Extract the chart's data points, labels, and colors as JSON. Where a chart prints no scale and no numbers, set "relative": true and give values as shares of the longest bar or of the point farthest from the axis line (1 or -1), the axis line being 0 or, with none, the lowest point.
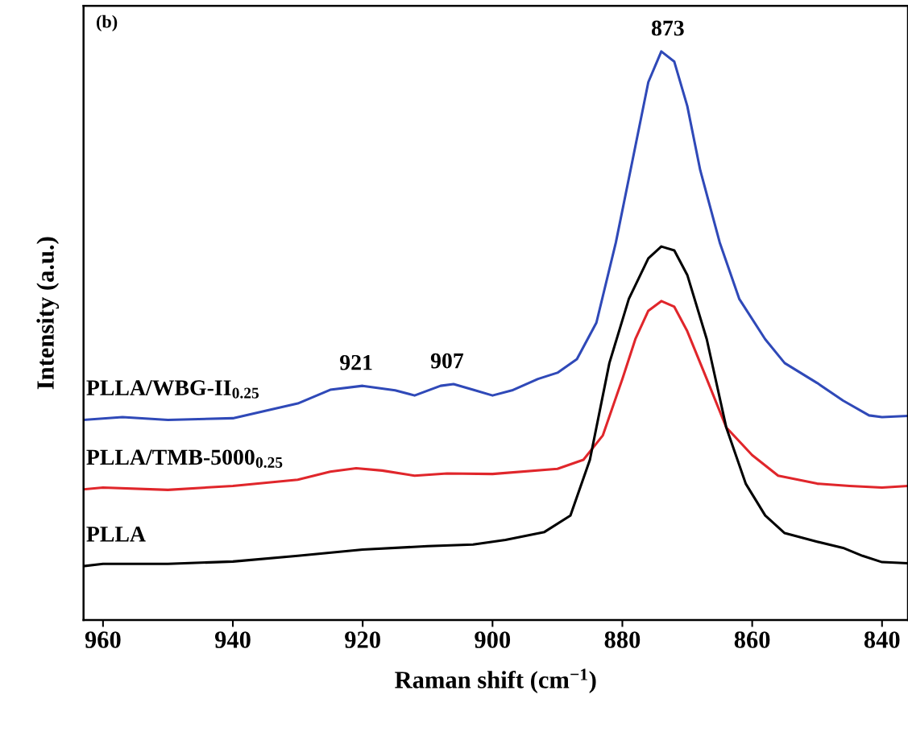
{
  "chart_data": {
    "type": "line",
    "relative": true,
    "xlabel": "Raman shift (cm$^{−1}$)",
    "ylabel": "Intensity (a.u.)",
    "xlim": [
      963,
      836
    ],
    "xticks": [
      960,
      940,
      920,
      900,
      880,
      860,
      840
    ],
    "tick_labels": "x",
    "grid": false,
    "marker": "none",
    "line_style": "solid",
    "annotations": [
      "(b)",
      {
        "text": "873",
        "x": 873,
        "y": 1.0
      },
      {
        "text": "921",
        "x": 921,
        "y": 0.412
      },
      {
        "text": "907",
        "x": 907,
        "y": 0.415
      }
    ],
    "series": [
      {
        "name": "PLLA/WBG-II$_{0.25}$",
        "color": "#2f49b8",
        "x": [
          963,
          957,
          950,
          940,
          930,
          925,
          920,
          915,
          912,
          908,
          906,
          903,
          900,
          897,
          893,
          890,
          887,
          884,
          881,
          878,
          876,
          874,
          872,
          870,
          868,
          865,
          862,
          858,
          855,
          850,
          846,
          842,
          840,
          836
        ],
        "values": [
          0.352,
          0.357,
          0.352,
          0.355,
          0.381,
          0.405,
          0.412,
          0.404,
          0.395,
          0.412,
          0.415,
          0.405,
          0.395,
          0.404,
          0.424,
          0.435,
          0.459,
          0.523,
          0.664,
          0.833,
          0.946,
          1.0,
          0.982,
          0.904,
          0.791,
          0.664,
          0.565,
          0.494,
          0.452,
          0.417,
          0.386,
          0.36,
          0.357,
          0.359
        ]
      },
      {
        "name": "PLLA/TMB-5000$_{0.25}$",
        "color": "#e0262b",
        "x": [
          963,
          960,
          950,
          940,
          930,
          925,
          921,
          917,
          912,
          907,
          900,
          890,
          886,
          883,
          880,
          878,
          876,
          874,
          872,
          870,
          867,
          864,
          860,
          856,
          850,
          845,
          840,
          836
        ],
        "values": [
          0.23,
          0.233,
          0.229,
          0.236,
          0.247,
          0.261,
          0.267,
          0.263,
          0.254,
          0.258,
          0.257,
          0.266,
          0.282,
          0.325,
          0.424,
          0.494,
          0.544,
          0.561,
          0.551,
          0.508,
          0.424,
          0.339,
          0.29,
          0.254,
          0.24,
          0.236,
          0.233,
          0.236
        ]
      },
      {
        "name": "PLLA",
        "color": "#000000",
        "x": [
          963,
          960,
          950,
          940,
          930,
          920,
          910,
          903,
          898,
          892,
          888,
          885,
          882,
          879,
          876,
          874,
          872,
          870,
          867,
          864,
          861,
          858,
          855,
          850,
          846,
          843,
          840,
          836
        ],
        "values": [
          0.095,
          0.099,
          0.099,
          0.103,
          0.113,
          0.124,
          0.13,
          0.133,
          0.141,
          0.155,
          0.184,
          0.282,
          0.452,
          0.565,
          0.636,
          0.657,
          0.65,
          0.607,
          0.494,
          0.339,
          0.24,
          0.184,
          0.153,
          0.138,
          0.127,
          0.113,
          0.102,
          0.1
        ]
      }
    ]
  }
}
